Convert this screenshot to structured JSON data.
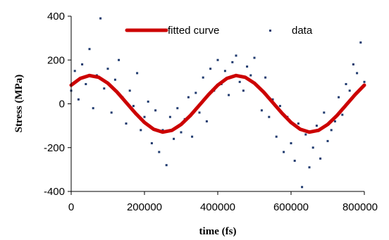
{
  "chart_data": {
    "type": "scatter",
    "xlabel": "time (fs)",
    "ylabel": "Stress (MPa)",
    "xlim": [
      0,
      800000
    ],
    "ylim": [
      -400,
      400
    ],
    "x_ticks": [
      "0",
      "200000",
      "400000",
      "600000",
      "800000"
    ],
    "y_ticks": [
      "400",
      "200",
      "0",
      "-200",
      "-400"
    ],
    "grid": false,
    "legend_position": "top",
    "series": [
      {
        "name": "fitted curve",
        "kind": "line",
        "color": "#cc0000",
        "x": [
          0,
          25000,
          50000,
          75000,
          100000,
          125000,
          150000,
          175000,
          200000,
          225000,
          250000,
          275000,
          300000,
          325000,
          350000,
          375000,
          400000,
          425000,
          450000,
          475000,
          500000,
          525000,
          550000,
          575000,
          600000,
          625000,
          650000,
          675000,
          700000,
          725000,
          750000,
          775000,
          800000
        ],
        "y": [
          85,
          116,
          129,
          121,
          94,
          54,
          6,
          -42,
          -85,
          -116,
          -129,
          -121,
          -94,
          -54,
          -6,
          42,
          85,
          116,
          129,
          121,
          94,
          54,
          6,
          -42,
          -85,
          -116,
          -129,
          -121,
          -94,
          -54,
          -6,
          42,
          85
        ]
      },
      {
        "name": "data",
        "kind": "scatter",
        "color": "#1f3a6e",
        "x": [
          0,
          10000,
          20000,
          30000,
          40000,
          50000,
          60000,
          70000,
          80000,
          90000,
          100000,
          110000,
          120000,
          130000,
          140000,
          150000,
          160000,
          170000,
          180000,
          190000,
          200000,
          210000,
          220000,
          230000,
          240000,
          250000,
          260000,
          270000,
          280000,
          290000,
          300000,
          310000,
          320000,
          330000,
          340000,
          350000,
          360000,
          370000,
          380000,
          390000,
          400000,
          410000,
          420000,
          430000,
          440000,
          450000,
          460000,
          470000,
          480000,
          490000,
          500000,
          510000,
          520000,
          530000,
          540000,
          550000,
          560000,
          570000,
          580000,
          590000,
          600000,
          610000,
          620000,
          630000,
          640000,
          650000,
          660000,
          670000,
          680000,
          690000,
          700000,
          710000,
          720000,
          730000,
          740000,
          750000,
          760000,
          770000,
          780000,
          790000,
          800000
        ],
        "y": [
          60,
          150,
          20,
          180,
          90,
          250,
          -20,
          130,
          390,
          70,
          160,
          -40,
          110,
          200,
          30,
          -90,
          60,
          -10,
          140,
          -120,
          -60,
          10,
          -180,
          -30,
          -220,
          -120,
          -280,
          -60,
          -160,
          -20,
          -130,
          -70,
          30,
          -150,
          50,
          -40,
          120,
          -80,
          160,
          60,
          200,
          90,
          150,
          40,
          190,
          220,
          100,
          60,
          170,
          130,
          210,
          80,
          -30,
          120,
          -60,
          20,
          -150,
          -10,
          -220,
          -60,
          -180,
          -260,
          -90,
          -380,
          -140,
          -290,
          -200,
          -100,
          -250,
          -40,
          -170,
          -120,
          -80,
          30,
          -50,
          90,
          60,
          180,
          140,
          280,
          100
        ]
      }
    ]
  }
}
